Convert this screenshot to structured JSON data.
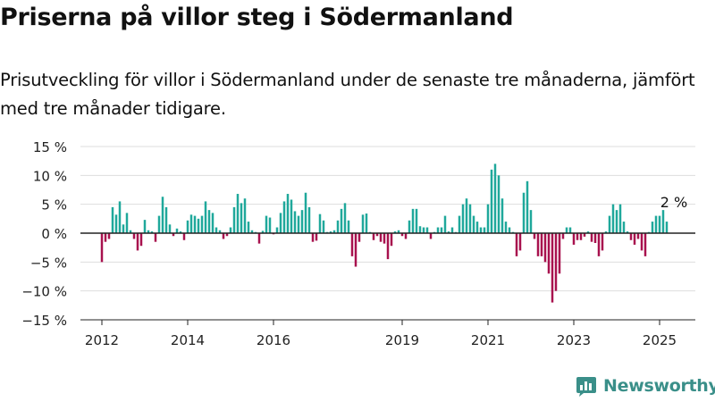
{
  "title": "Priserna på villor steg i Södermanland",
  "subtitle": "Prisutveckling för villor i Södermanland under de senaste tre månaderna, jämfört med tre månader tidigare.",
  "logo": {
    "text": "Newsworthy",
    "icon": "bar-chart-logo-icon"
  },
  "colors": {
    "positive": "#1fa89b",
    "negative": "#a8114e",
    "axis": "#222222",
    "grid": "#dddddd"
  },
  "chart_data": {
    "type": "bar",
    "x_start": "2011-09",
    "x_end": "2025-07",
    "x_ticks": [
      {
        "label": "2012",
        "date": "2012-01"
      },
      {
        "label": "2014",
        "date": "2014-01"
      },
      {
        "label": "2016",
        "date": "2016-01"
      },
      {
        "label": "2019",
        "date": "2019-01"
      },
      {
        "label": "2021",
        "date": "2021-01"
      },
      {
        "label": "2023",
        "date": "2023-01"
      },
      {
        "label": "2025",
        "date": "2025-01"
      }
    ],
    "y_ticks": [
      {
        "label": "15 %",
        "value": 15
      },
      {
        "label": "10 %",
        "value": 10
      },
      {
        "label": "5 %",
        "value": 5
      },
      {
        "label": "0 %",
        "value": 0
      },
      {
        "label": "−5 %",
        "value": -5
      },
      {
        "label": "−10 %",
        "value": -10
      },
      {
        "label": "−15 %",
        "value": -15
      }
    ],
    "ylim": [
      -15,
      15
    ],
    "grid": true,
    "annotation": {
      "text": "2 %",
      "date": "2025-06",
      "value": 2
    },
    "values": [
      {
        "x": "2012-01",
        "y": -5
      },
      {
        "x": "2012-02",
        "y": -1.5
      },
      {
        "x": "2012-03",
        "y": -1
      },
      {
        "x": "2012-04",
        "y": 4.5
      },
      {
        "x": "2012-05",
        "y": 3.2
      },
      {
        "x": "2012-06",
        "y": 5.5
      },
      {
        "x": "2012-07",
        "y": 1.5
      },
      {
        "x": "2012-08",
        "y": 3.5
      },
      {
        "x": "2012-09",
        "y": 0.5
      },
      {
        "x": "2012-10",
        "y": -1
      },
      {
        "x": "2012-11",
        "y": -3
      },
      {
        "x": "2012-12",
        "y": -2.2
      },
      {
        "x": "2013-01",
        "y": 2.3
      },
      {
        "x": "2013-02",
        "y": 0.5
      },
      {
        "x": "2013-03",
        "y": 0.3
      },
      {
        "x": "2013-04",
        "y": -1.5
      },
      {
        "x": "2013-05",
        "y": 3
      },
      {
        "x": "2013-06",
        "y": 6.3
      },
      {
        "x": "2013-07",
        "y": 4.5
      },
      {
        "x": "2013-08",
        "y": 1.5
      },
      {
        "x": "2013-09",
        "y": -0.5
      },
      {
        "x": "2013-10",
        "y": 0.8
      },
      {
        "x": "2013-11",
        "y": 0.3
      },
      {
        "x": "2013-12",
        "y": -1.2
      },
      {
        "x": "2014-01",
        "y": 2.2
      },
      {
        "x": "2014-02",
        "y": 3.2
      },
      {
        "x": "2014-03",
        "y": 3
      },
      {
        "x": "2014-04",
        "y": 2.5
      },
      {
        "x": "2014-05",
        "y": 3
      },
      {
        "x": "2014-06",
        "y": 5.5
      },
      {
        "x": "2014-07",
        "y": 4
      },
      {
        "x": "2014-08",
        "y": 3.5
      },
      {
        "x": "2014-09",
        "y": 1
      },
      {
        "x": "2014-10",
        "y": 0.5
      },
      {
        "x": "2014-11",
        "y": -1
      },
      {
        "x": "2014-12",
        "y": -0.5
      },
      {
        "x": "2015-01",
        "y": 1
      },
      {
        "x": "2015-02",
        "y": 4.5
      },
      {
        "x": "2015-03",
        "y": 6.8
      },
      {
        "x": "2015-04",
        "y": 5.2
      },
      {
        "x": "2015-05",
        "y": 6
      },
      {
        "x": "2015-06",
        "y": 2
      },
      {
        "x": "2015-07",
        "y": 0.5
      },
      {
        "x": "2015-08",
        "y": 0.2
      },
      {
        "x": "2015-09",
        "y": -1.8
      },
      {
        "x": "2015-10",
        "y": 0.4
      },
      {
        "x": "2015-11",
        "y": 3
      },
      {
        "x": "2015-12",
        "y": 2.7
      },
      {
        "x": "2016-01",
        "y": -0.2
      },
      {
        "x": "2016-02",
        "y": 1
      },
      {
        "x": "2016-03",
        "y": 3.5
      },
      {
        "x": "2016-04",
        "y": 5.5
      },
      {
        "x": "2016-05",
        "y": 6.8
      },
      {
        "x": "2016-06",
        "y": 5.8
      },
      {
        "x": "2016-07",
        "y": 3.8
      },
      {
        "x": "2016-08",
        "y": 3
      },
      {
        "x": "2016-09",
        "y": 4
      },
      {
        "x": "2016-10",
        "y": 7
      },
      {
        "x": "2016-11",
        "y": 4.5
      },
      {
        "x": "2016-12",
        "y": -1.5
      },
      {
        "x": "2017-01",
        "y": -1.3
      },
      {
        "x": "2017-02",
        "y": 3.3
      },
      {
        "x": "2017-03",
        "y": 2.2
      },
      {
        "x": "2017-04",
        "y": 0.2
      },
      {
        "x": "2017-05",
        "y": 0.3
      },
      {
        "x": "2017-06",
        "y": 0.5
      },
      {
        "x": "2017-07",
        "y": 2.2
      },
      {
        "x": "2017-08",
        "y": 4.2
      },
      {
        "x": "2017-09",
        "y": 5.2
      },
      {
        "x": "2017-10",
        "y": 2.2
      },
      {
        "x": "2017-11",
        "y": -4
      },
      {
        "x": "2017-12",
        "y": -5.8
      },
      {
        "x": "2018-01",
        "y": -1.5
      },
      {
        "x": "2018-02",
        "y": 3.2
      },
      {
        "x": "2018-03",
        "y": 3.4
      },
      {
        "x": "2018-04",
        "y": 0.2
      },
      {
        "x": "2018-05",
        "y": -1.2
      },
      {
        "x": "2018-06",
        "y": -0.5
      },
      {
        "x": "2018-07",
        "y": -1.5
      },
      {
        "x": "2018-08",
        "y": -1.8
      },
      {
        "x": "2018-09",
        "y": -4.5
      },
      {
        "x": "2018-10",
        "y": -2.2
      },
      {
        "x": "2018-11",
        "y": 0.3
      },
      {
        "x": "2018-12",
        "y": 0.5
      },
      {
        "x": "2019-01",
        "y": -0.5
      },
      {
        "x": "2019-02",
        "y": -1
      },
      {
        "x": "2019-03",
        "y": 2.2
      },
      {
        "x": "2019-04",
        "y": 4.2
      },
      {
        "x": "2019-05",
        "y": 4.2
      },
      {
        "x": "2019-06",
        "y": 1.2
      },
      {
        "x": "2019-07",
        "y": 1
      },
      {
        "x": "2019-08",
        "y": 1
      },
      {
        "x": "2019-09",
        "y": -1
      },
      {
        "x": "2019-10",
        "y": 0.2
      },
      {
        "x": "2019-11",
        "y": 1
      },
      {
        "x": "2019-12",
        "y": 1
      },
      {
        "x": "2020-01",
        "y": 3
      },
      {
        "x": "2020-02",
        "y": 0.3
      },
      {
        "x": "2020-03",
        "y": 1
      },
      {
        "x": "2020-04",
        "y": 0.2
      },
      {
        "x": "2020-05",
        "y": 3
      },
      {
        "x": "2020-06",
        "y": 5
      },
      {
        "x": "2020-07",
        "y": 6
      },
      {
        "x": "2020-08",
        "y": 5
      },
      {
        "x": "2020-09",
        "y": 3
      },
      {
        "x": "2020-10",
        "y": 2
      },
      {
        "x": "2020-11",
        "y": 1
      },
      {
        "x": "2020-12",
        "y": 1
      },
      {
        "x": "2021-01",
        "y": 5
      },
      {
        "x": "2021-02",
        "y": 11
      },
      {
        "x": "2021-03",
        "y": 12
      },
      {
        "x": "2021-04",
        "y": 10
      },
      {
        "x": "2021-05",
        "y": 6
      },
      {
        "x": "2021-06",
        "y": 2
      },
      {
        "x": "2021-07",
        "y": 1
      },
      {
        "x": "2021-08",
        "y": 0.2
      },
      {
        "x": "2021-09",
        "y": -4
      },
      {
        "x": "2021-10",
        "y": -3
      },
      {
        "x": "2021-11",
        "y": 7
      },
      {
        "x": "2021-12",
        "y": 9
      },
      {
        "x": "2022-01",
        "y": 4
      },
      {
        "x": "2022-02",
        "y": -1
      },
      {
        "x": "2022-03",
        "y": -4
      },
      {
        "x": "2022-04",
        "y": -4
      },
      {
        "x": "2022-05",
        "y": -5
      },
      {
        "x": "2022-06",
        "y": -7
      },
      {
        "x": "2022-07",
        "y": -12
      },
      {
        "x": "2022-08",
        "y": -10
      },
      {
        "x": "2022-09",
        "y": -7
      },
      {
        "x": "2022-10",
        "y": -1
      },
      {
        "x": "2022-11",
        "y": 1
      },
      {
        "x": "2022-12",
        "y": 1
      },
      {
        "x": "2023-01",
        "y": -2
      },
      {
        "x": "2023-02",
        "y": -1.2
      },
      {
        "x": "2023-03",
        "y": -1.2
      },
      {
        "x": "2023-04",
        "y": -0.6
      },
      {
        "x": "2023-05",
        "y": 0.3
      },
      {
        "x": "2023-06",
        "y": -1.5
      },
      {
        "x": "2023-07",
        "y": -1.7
      },
      {
        "x": "2023-08",
        "y": -4
      },
      {
        "x": "2023-09",
        "y": -3
      },
      {
        "x": "2023-10",
        "y": 0.3
      },
      {
        "x": "2023-11",
        "y": 3
      },
      {
        "x": "2023-12",
        "y": 5
      },
      {
        "x": "2024-01",
        "y": 4
      },
      {
        "x": "2024-02",
        "y": 5
      },
      {
        "x": "2024-03",
        "y": 2
      },
      {
        "x": "2024-04",
        "y": 0.3
      },
      {
        "x": "2024-05",
        "y": -1.2
      },
      {
        "x": "2024-06",
        "y": -2
      },
      {
        "x": "2024-07",
        "y": -1
      },
      {
        "x": "2024-08",
        "y": -3
      },
      {
        "x": "2024-09",
        "y": -4
      },
      {
        "x": "2024-10",
        "y": 0.2
      },
      {
        "x": "2024-11",
        "y": 2
      },
      {
        "x": "2024-12",
        "y": 3
      },
      {
        "x": "2025-01",
        "y": 3
      },
      {
        "x": "2025-02",
        "y": 4
      },
      {
        "x": "2025-03",
        "y": 2
      }
    ]
  }
}
